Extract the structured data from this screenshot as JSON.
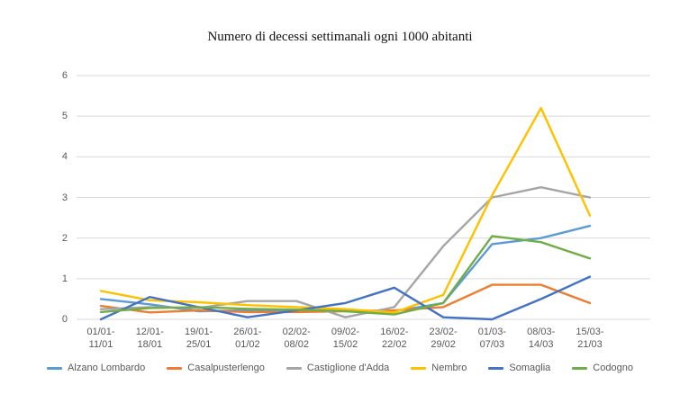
{
  "colors": {
    "background": "#FFFFFF",
    "grid": "#D9D9D9",
    "tick_text": "#595959",
    "title_text": "#111111"
  },
  "chart_data": {
    "type": "line",
    "title": "Numero di decessi settimanali ogni 1000 abitanti",
    "xlabel": "",
    "ylabel": "",
    "ylim": [
      0,
      6
    ],
    "y_ticks": [
      0,
      1,
      2,
      3,
      4,
      5,
      6
    ],
    "grid": "horizontal",
    "legend_position": "bottom",
    "categories": [
      "01/01-11/01",
      "12/01-18/01",
      "19/01-25/01",
      "26/01-01/02",
      "02/02-08/02",
      "09/02-15/02",
      "16/02-22/02",
      "23/02-29/02",
      "01/03-07/03",
      "08/03-14/03",
      "15/03-21/03"
    ],
    "series": [
      {
        "name": "Alzano Lombardo",
        "color": "#5B9BD5",
        "values": [
          0.5,
          0.37,
          0.2,
          0.22,
          0.2,
          0.22,
          0.2,
          0.4,
          1.85,
          2.0,
          2.3
        ]
      },
      {
        "name": "Casalpusterlengo",
        "color": "#ED7D31",
        "values": [
          0.33,
          0.17,
          0.22,
          0.18,
          0.18,
          0.2,
          0.22,
          0.3,
          0.85,
          0.85,
          0.4
        ]
      },
      {
        "name": "Castiglione d'Adda",
        "color": "#A5A5A5",
        "values": [
          0.25,
          0.3,
          0.28,
          0.45,
          0.45,
          0.05,
          0.3,
          1.8,
          3.0,
          3.25,
          3.0
        ]
      },
      {
        "name": "Nembro",
        "color": "#FFC000",
        "values": [
          0.7,
          0.47,
          0.42,
          0.35,
          0.3,
          0.25,
          0.17,
          0.6,
          3.05,
          5.2,
          2.55
        ]
      },
      {
        "name": "Somaglia",
        "color": "#4472C4",
        "values": [
          0.0,
          0.55,
          0.3,
          0.05,
          0.22,
          0.4,
          0.78,
          0.05,
          0.0,
          0.5,
          1.05
        ]
      },
      {
        "name": "Codogno",
        "color": "#70AD47",
        "values": [
          0.18,
          0.28,
          0.3,
          0.26,
          0.24,
          0.2,
          0.12,
          0.4,
          2.05,
          1.9,
          1.5
        ]
      }
    ]
  }
}
